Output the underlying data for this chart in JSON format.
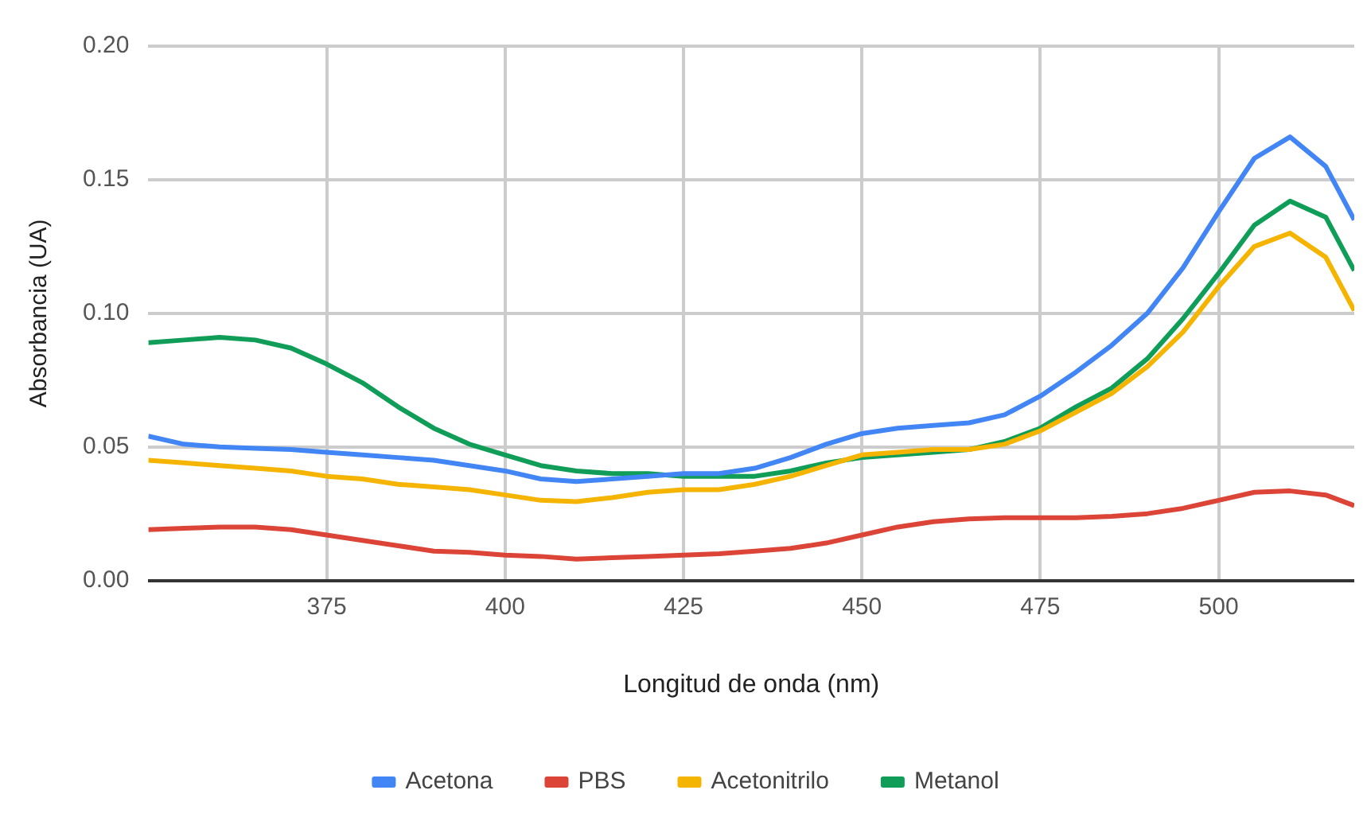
{
  "chart_data": {
    "type": "line",
    "xlabel": "Longitud de onda (nm)",
    "ylabel": "Absorbancia (UA)",
    "x": [
      350,
      355,
      360,
      365,
      370,
      375,
      380,
      385,
      390,
      395,
      400,
      405,
      410,
      415,
      420,
      425,
      430,
      435,
      440,
      445,
      450,
      455,
      460,
      465,
      470,
      475,
      480,
      485,
      490,
      495,
      500,
      505,
      510,
      515,
      519
    ],
    "xlim": [
      350,
      519
    ],
    "xticks": [
      375,
      400,
      425,
      450,
      475,
      500
    ],
    "ylim": [
      0,
      0.2
    ],
    "yticks": [
      {
        "value": 0,
        "label": "0.00"
      },
      {
        "value": 0.05,
        "label": "0.05"
      },
      {
        "value": 0.1,
        "label": "0.10"
      },
      {
        "value": 0.15,
        "label": "0.15"
      },
      {
        "value": 0.2,
        "label": "0.20"
      }
    ],
    "grid": true,
    "legend": "bottom",
    "marker": "none",
    "line_style": "solid",
    "series": [
      {
        "name": "Acetona",
        "color": "#4285f4",
        "values": [
          0.054,
          0.051,
          0.05,
          0.0495,
          0.049,
          0.048,
          0.047,
          0.046,
          0.045,
          0.043,
          0.041,
          0.038,
          0.037,
          0.038,
          0.039,
          0.04,
          0.04,
          0.042,
          0.046,
          0.051,
          0.055,
          0.057,
          0.058,
          0.059,
          0.062,
          0.069,
          0.078,
          0.088,
          0.1,
          0.117,
          0.138,
          0.158,
          0.166,
          0.155,
          0.135
        ]
      },
      {
        "name": "PBS",
        "color": "#db4437",
        "values": [
          0.019,
          0.0195,
          0.02,
          0.02,
          0.019,
          0.017,
          0.015,
          0.013,
          0.011,
          0.0105,
          0.0095,
          0.009,
          0.008,
          0.0085,
          0.009,
          0.0095,
          0.01,
          0.011,
          0.012,
          0.014,
          0.017,
          0.02,
          0.022,
          0.023,
          0.0235,
          0.0235,
          0.0235,
          0.024,
          0.025,
          0.027,
          0.03,
          0.033,
          0.0335,
          0.032,
          0.028
        ]
      },
      {
        "name": "Acetonitrilo",
        "color": "#f4b400",
        "values": [
          0.045,
          0.044,
          0.043,
          0.042,
          0.041,
          0.039,
          0.038,
          0.036,
          0.035,
          0.034,
          0.032,
          0.03,
          0.0295,
          0.031,
          0.033,
          0.034,
          0.034,
          0.036,
          0.039,
          0.043,
          0.047,
          0.048,
          0.049,
          0.049,
          0.051,
          0.056,
          0.063,
          0.07,
          0.08,
          0.093,
          0.11,
          0.125,
          0.13,
          0.121,
          0.101
        ]
      },
      {
        "name": "Metanol",
        "color": "#0f9d58",
        "values": [
          0.089,
          0.09,
          0.091,
          0.09,
          0.087,
          0.081,
          0.074,
          0.065,
          0.057,
          0.051,
          0.047,
          0.043,
          0.041,
          0.04,
          0.04,
          0.039,
          0.039,
          0.039,
          0.041,
          0.044,
          0.046,
          0.047,
          0.048,
          0.049,
          0.052,
          0.057,
          0.065,
          0.072,
          0.083,
          0.098,
          0.115,
          0.133,
          0.142,
          0.136,
          0.116
        ]
      }
    ]
  }
}
